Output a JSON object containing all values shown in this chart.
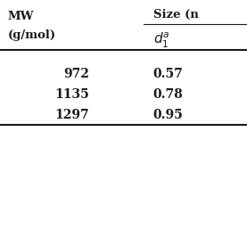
{
  "col1_header_line1": "MW",
  "col1_header_line2": "(g/mol)",
  "col2_group_header": "Size (",
  "col2_subheader": "$d_1^a$",
  "rows": [
    [
      "972",
      "0.57"
    ],
    [
      "1135",
      "0.78"
    ],
    [
      "1297",
      "0.95"
    ]
  ],
  "bg_color": "#ffffff",
  "text_color": "#1a1a1a",
  "font_size": 9.5
}
